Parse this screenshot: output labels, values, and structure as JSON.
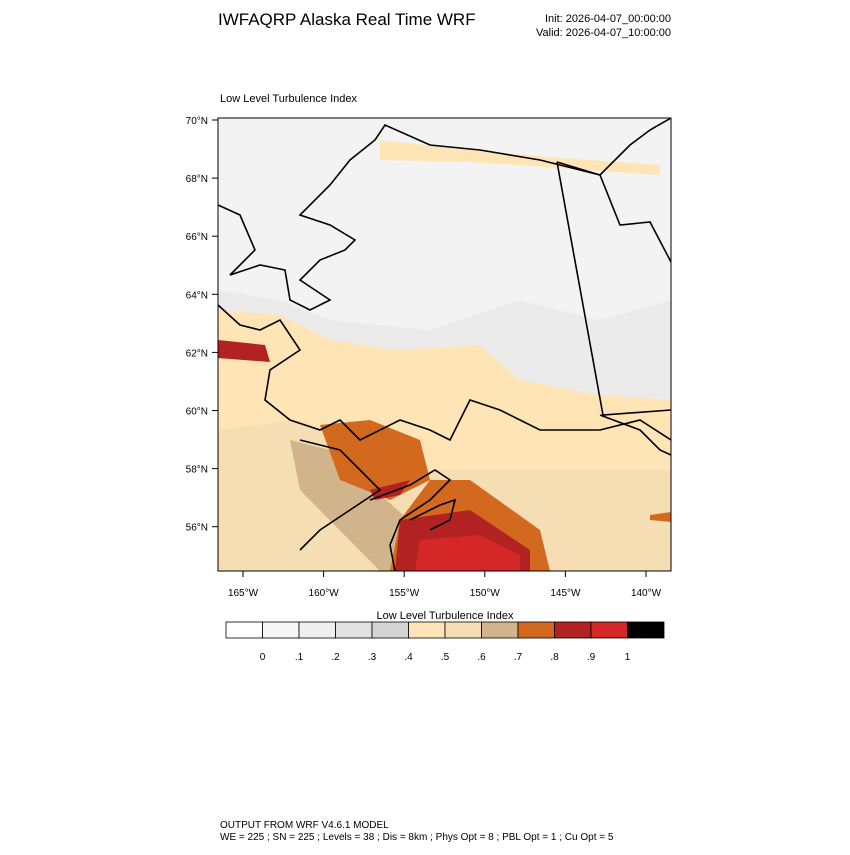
{
  "header": {
    "title": "IWFAQRP Alaska Real Time WRF",
    "init": "Init: 2026-04-07_00:00:00",
    "valid": "Valid: 2026-04-07_10:00:00"
  },
  "map": {
    "title": "Low Level Turbulence Index",
    "lat_labels": [
      "70°N",
      "68°N",
      "66°N",
      "64°N",
      "62°N",
      "60°N",
      "58°N",
      "56°N"
    ],
    "lon_labels": [
      "165°W",
      "160°W",
      "155°W",
      "150°W",
      "145°W",
      "140°W"
    ]
  },
  "colorbar": {
    "title": "Low Level Turbulence Index",
    "labels": [
      "0",
      ".1",
      ".2",
      ".3",
      ".4",
      ".5",
      ".6",
      ".7",
      ".8",
      ".9",
      "1"
    ],
    "colors": [
      "#ffffff",
      "#f7f7f7",
      "#efefef",
      "#e1e1e1",
      "#d4d4d4",
      "#ffe4b5",
      "#f5deb3",
      "#d2b48c",
      "#d2691e",
      "#b22222",
      "#d62728",
      "#000000"
    ]
  },
  "footer": {
    "line1": "OUTPUT FROM WRF V4.6.1 MODEL",
    "line2": "WE = 225 ; SN = 225 ; Levels = 38 ; Dis = 8km ; Phys Opt = 8 ; PBL Opt = 1 ; Cu Opt = 5"
  }
}
